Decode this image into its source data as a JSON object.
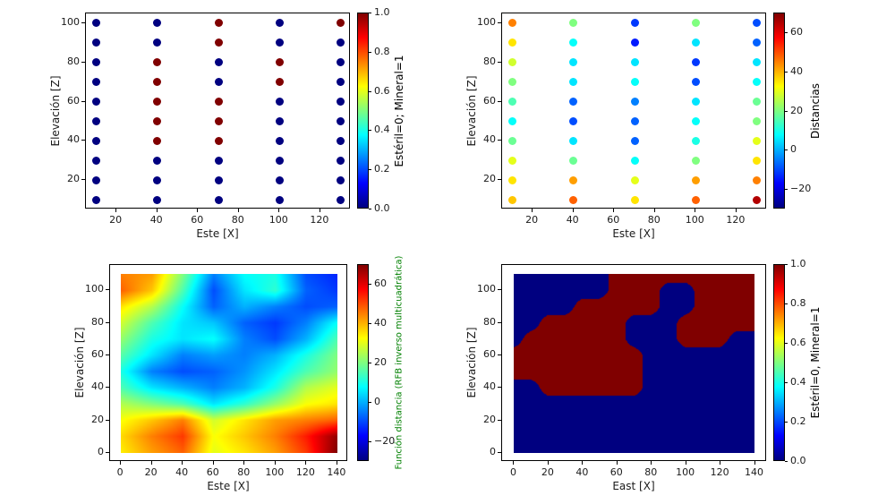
{
  "figure": {
    "background": "#ffffff"
  },
  "colors": {
    "jet_css": "#000080 0%, #0000ff 12.5%, #00ffff 37.5%, #7fff7f 50%, #ffff00 62.5%, #ff0000 87.5%, #800000 100%",
    "mineral_red": "#800000",
    "waste_blue": "#000080",
    "background": "#ffffff"
  },
  "chart_data": [
    {
      "id": "drillhole-lithology-scatter",
      "type": "scatter",
      "title": "",
      "xlabel": "Este [X]",
      "ylabel": "Elevación [Z]",
      "colorbar_label": "Estéril=0; Mineral=1",
      "colorbar_label_color": "#000000",
      "xlim": [
        5,
        135
      ],
      "ylim": [
        5,
        105
      ],
      "xticks": [
        20,
        40,
        60,
        80,
        100,
        120
      ],
      "yticks": [
        20,
        40,
        60,
        80,
        100
      ],
      "x_values": [
        10,
        40,
        70,
        100,
        130
      ],
      "z_values": [
        100,
        90,
        80,
        70,
        60,
        50,
        40,
        30,
        20,
        10
      ],
      "values_grid": [
        [
          0,
          0,
          1,
          0,
          1
        ],
        [
          0,
          0,
          1,
          0,
          0
        ],
        [
          0,
          1,
          0,
          1,
          0
        ],
        [
          0,
          1,
          0,
          1,
          0
        ],
        [
          0,
          1,
          1,
          0,
          0
        ],
        [
          0,
          1,
          1,
          0,
          0
        ],
        [
          0,
          1,
          1,
          0,
          0
        ],
        [
          0,
          0,
          0,
          0,
          0
        ],
        [
          0,
          0,
          0,
          0,
          0
        ],
        [
          0,
          0,
          0,
          0,
          0
        ]
      ],
      "colorbar_range": [
        0,
        1
      ],
      "colorbar_ticks": [
        0,
        0.2,
        0.4,
        0.6,
        0.8,
        1
      ],
      "colorbar_tick_labels": [
        "0.0",
        "0.2",
        "0.4",
        "0.6",
        "0.8",
        "1.0"
      ]
    },
    {
      "id": "drillhole-distances-scatter",
      "type": "scatter",
      "title": "",
      "xlabel": "Este [X]",
      "ylabel": "Elevación [Z]",
      "colorbar_label": "Distancias",
      "colorbar_label_color": "#000000",
      "xlim": [
        5,
        135
      ],
      "ylim": [
        5,
        105
      ],
      "xticks": [
        20,
        40,
        60,
        80,
        100,
        120
      ],
      "yticks": [
        20,
        40,
        60,
        80,
        100
      ],
      "x_values": [
        10,
        40,
        70,
        100,
        130
      ],
      "z_values": [
        100,
        90,
        80,
        70,
        60,
        50,
        40,
        30,
        20,
        10
      ],
      "values_grid": [
        [
          45,
          20,
          -12,
          20,
          -10
        ],
        [
          35,
          8,
          -15,
          5,
          -8
        ],
        [
          28,
          5,
          5,
          -12,
          5
        ],
        [
          20,
          5,
          8,
          -10,
          8
        ],
        [
          15,
          -8,
          -5,
          5,
          18
        ],
        [
          8,
          -10,
          -8,
          8,
          20
        ],
        [
          18,
          5,
          -8,
          10,
          30
        ],
        [
          30,
          18,
          8,
          20,
          35
        ],
        [
          35,
          42,
          30,
          42,
          45
        ],
        [
          38,
          48,
          35,
          48,
          65
        ]
      ],
      "colorbar_range": [
        -30,
        70
      ],
      "colorbar_ticks": [
        -20,
        0,
        20,
        40,
        60
      ],
      "colorbar_tick_labels": [
        "−20",
        "0",
        "20",
        "40",
        "60"
      ]
    },
    {
      "id": "rbf-distance-field-heatmap",
      "type": "heatmap",
      "title": "",
      "xlabel": "Este [X]",
      "ylabel": "Elevación [Z]",
      "colorbar_label": "Función distancia (RFB inverso multicuadrática)",
      "colorbar_label_color": "#008000",
      "xlim": [
        -7,
        147
      ],
      "ylim": [
        -5.5,
        115.5
      ],
      "xticks": [
        0,
        20,
        40,
        60,
        80,
        100,
        120,
        140
      ],
      "yticks": [
        0,
        20,
        40,
        60,
        80,
        100
      ],
      "extent": [
        0,
        140,
        0,
        110
      ],
      "grid_x": [
        0,
        20,
        40,
        60,
        80,
        100,
        120,
        140
      ],
      "grid_z": [
        110,
        100,
        90,
        80,
        70,
        60,
        50,
        40,
        30,
        20,
        10,
        0
      ],
      "grid": [
        [
          45,
          42,
          20,
          -5,
          8,
          10,
          -10,
          -14
        ],
        [
          48,
          38,
          15,
          -10,
          5,
          12,
          -8,
          -12
        ],
        [
          35,
          25,
          8,
          -8,
          0,
          -5,
          -10,
          -8
        ],
        [
          28,
          15,
          5,
          2,
          -8,
          -12,
          -5,
          8
        ],
        [
          22,
          10,
          5,
          8,
          -5,
          -10,
          0,
          15
        ],
        [
          16,
          5,
          -5,
          -2,
          -5,
          0,
          10,
          20
        ],
        [
          10,
          -5,
          -10,
          -8,
          -3,
          5,
          15,
          22
        ],
        [
          15,
          5,
          0,
          -5,
          0,
          10,
          25,
          30
        ],
        [
          25,
          20,
          15,
          5,
          12,
          22,
          32,
          35
        ],
        [
          32,
          38,
          45,
          28,
          35,
          42,
          45,
          48
        ],
        [
          36,
          45,
          52,
          32,
          38,
          45,
          55,
          68
        ],
        [
          34,
          42,
          48,
          30,
          35,
          42,
          52,
          70
        ]
      ],
      "colorbar_range": [
        -30,
        70
      ],
      "colorbar_ticks": [
        -20,
        0,
        20,
        40,
        60
      ],
      "colorbar_tick_labels": [
        "−20",
        "0",
        "20",
        "40",
        "60"
      ]
    },
    {
      "id": "classified-block-model",
      "type": "heatmap_binary",
      "title": "",
      "xlabel": "East [X]",
      "ylabel": "Elevación [Z]",
      "colorbar_label": "Estéril=0, Mineral=1",
      "colorbar_label_color": "#000000",
      "xlim": [
        -7,
        147
      ],
      "ylim": [
        -5.5,
        115.5
      ],
      "xticks": [
        0,
        20,
        40,
        60,
        80,
        100,
        120,
        140
      ],
      "yticks": [
        0,
        20,
        40,
        60,
        80,
        100
      ],
      "extent": [
        0,
        140,
        0,
        110
      ],
      "grid_x": [
        0,
        10,
        20,
        30,
        40,
        50,
        60,
        70,
        80,
        90,
        100,
        110,
        120,
        130,
        140
      ],
      "grid_z": [
        110,
        100,
        90,
        80,
        70,
        60,
        50,
        40,
        30,
        20,
        10,
        0
      ],
      "grid": [
        [
          0,
          0,
          0,
          0,
          0,
          0,
          1,
          1,
          1,
          1,
          1,
          1,
          1,
          1,
          1
        ],
        [
          0,
          0,
          0,
          0,
          0,
          0,
          1,
          1,
          1,
          0,
          0,
          1,
          1,
          1,
          1
        ],
        [
          0,
          0,
          0,
          0,
          1,
          1,
          1,
          1,
          1,
          0,
          0,
          1,
          1,
          1,
          1
        ],
        [
          0,
          0,
          1,
          1,
          1,
          1,
          1,
          0,
          0,
          0,
          1,
          1,
          1,
          1,
          1
        ],
        [
          0,
          1,
          1,
          1,
          1,
          1,
          1,
          0,
          0,
          0,
          1,
          1,
          1,
          0,
          0
        ],
        [
          1,
          1,
          1,
          1,
          1,
          1,
          1,
          1,
          0,
          0,
          0,
          0,
          0,
          0,
          0
        ],
        [
          1,
          1,
          1,
          1,
          1,
          1,
          1,
          1,
          0,
          0,
          0,
          0,
          0,
          0,
          0
        ],
        [
          0,
          0,
          1,
          1,
          1,
          1,
          1,
          1,
          0,
          0,
          0,
          0,
          0,
          0,
          0
        ],
        [
          0,
          0,
          0,
          0,
          0,
          0,
          0,
          0,
          0,
          0,
          0,
          0,
          0,
          0,
          0
        ],
        [
          0,
          0,
          0,
          0,
          0,
          0,
          0,
          0,
          0,
          0,
          0,
          0,
          0,
          0,
          0
        ],
        [
          0,
          0,
          0,
          0,
          0,
          0,
          0,
          0,
          0,
          0,
          0,
          0,
          0,
          0,
          0
        ],
        [
          0,
          0,
          0,
          0,
          0,
          0,
          0,
          0,
          0,
          0,
          0,
          0,
          0,
          0,
          0
        ]
      ],
      "colorbar_range": [
        0,
        1
      ],
      "colorbar_ticks": [
        0,
        0.2,
        0.4,
        0.6,
        0.8,
        1
      ],
      "colorbar_tick_labels": [
        "0.0",
        "0.2",
        "0.4",
        "0.6",
        "0.8",
        "1.0"
      ]
    }
  ]
}
